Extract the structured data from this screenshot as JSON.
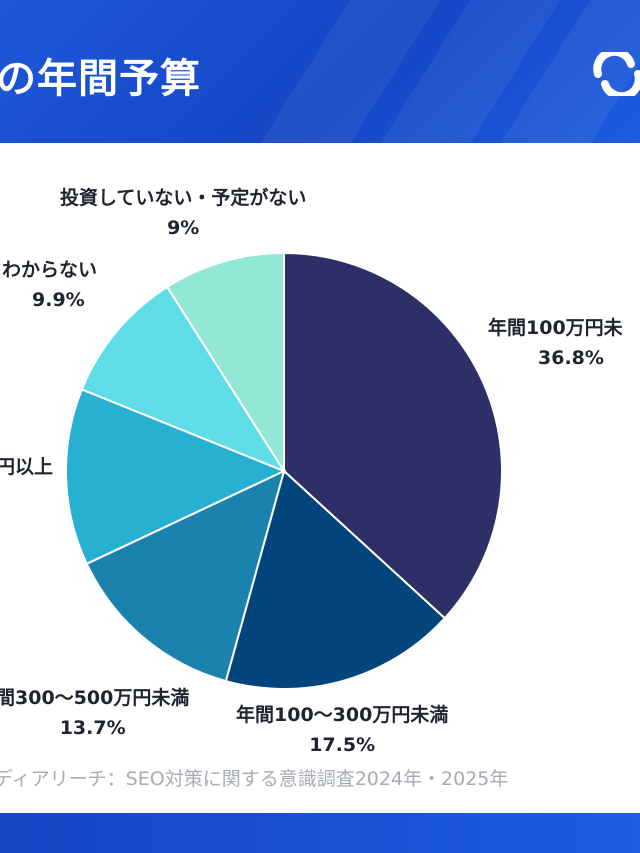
{
  "header": {
    "title": "の年間予算"
  },
  "colors": {
    "header_bg": "#1a50d0",
    "slices": [
      "#2d2f67",
      "#02457c",
      "#1a82ac",
      "#26b1d2",
      "#5fdde6",
      "#93e7d6"
    ]
  },
  "chart_data": {
    "type": "pie",
    "start_angle_deg": 0,
    "direction": "clockwise",
    "slices": [
      {
        "label": "年間100万円未",
        "value": 36.8,
        "display": "36.8%"
      },
      {
        "label": "年間100〜300万円未満",
        "value": 17.5,
        "display": "17.5%"
      },
      {
        "label": "間300〜500万円未満",
        "value": 13.7,
        "display": "13.7%"
      },
      {
        "label": "円以上",
        "value": 13.1,
        "display": ""
      },
      {
        "label": "わからない",
        "value": 9.9,
        "display": "9.9%"
      },
      {
        "label": "投資していない・予定がない",
        "value": 9.0,
        "display": "9%"
      }
    ]
  },
  "source": "ディアリーチ：SEO対策に関する意識調査2024年・2025年"
}
